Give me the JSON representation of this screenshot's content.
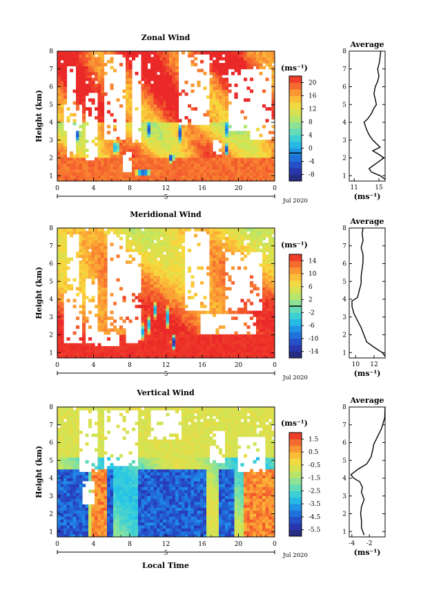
{
  "chart_data": [
    {
      "type": "heatmap",
      "title": "Zonal Wind",
      "ylabel": "Height (km)",
      "x_ticks": [
        "0",
        "4",
        "8",
        "12",
        "16",
        "20",
        "0"
      ],
      "y_ticks": [
        "1",
        "2",
        "3",
        "4",
        "5",
        "6",
        "7",
        "8"
      ],
      "xlim": [
        0,
        24
      ],
      "ylim": [
        0.7,
        8
      ],
      "date_day": "5",
      "date_label": "Jul 2020",
      "unit": "(ms⁻¹)",
      "colorbar": {
        "min": -8,
        "max": 22,
        "ticks": [
          "20",
          "16",
          "12",
          "8",
          "4",
          "0",
          "-4",
          "-8"
        ],
        "marker": 0
      },
      "average": {
        "title": "Average",
        "xlabel": "(ms⁻¹)",
        "x_ticks": [
          "11",
          "15"
        ],
        "xlim": [
          10.2,
          16
        ],
        "profile": [
          [
            0.8,
            16
          ],
          [
            1.0,
            15.2
          ],
          [
            1.2,
            13.8
          ],
          [
            1.4,
            13.4
          ],
          [
            1.6,
            14.2
          ],
          [
            1.8,
            15.0
          ],
          [
            2.0,
            15.8
          ],
          [
            2.2,
            15.0
          ],
          [
            2.4,
            14.0
          ],
          [
            2.6,
            15.2
          ],
          [
            2.8,
            14.6
          ],
          [
            3.0,
            14.0
          ],
          [
            3.3,
            13.4
          ],
          [
            3.6,
            13.0
          ],
          [
            3.8,
            12.8
          ],
          [
            4.0,
            12.6
          ],
          [
            4.2,
            13.2
          ],
          [
            4.5,
            13.8
          ],
          [
            4.8,
            14.2
          ],
          [
            5.0,
            14.6
          ],
          [
            5.3,
            14.4
          ],
          [
            5.6,
            14.2
          ],
          [
            6.0,
            14.4
          ],
          [
            6.3,
            14.8
          ],
          [
            6.6,
            15.0
          ],
          [
            7.0,
            14.8
          ],
          [
            7.4,
            15.1
          ],
          [
            8.0,
            15.3
          ]
        ]
      },
      "field": {
        "gaps": [
          [
            [
              0.6,
              2.6
            ],
            [
              3.6,
              5.0
            ]
          ],
          [
            [
              6.5,
              6.8
            ],
            [
              4.0,
              5.4
            ]
          ],
          [
            [
              1.0,
              2.0
            ],
            [
              2.0,
              7.2
            ]
          ],
          [
            [
              3.2,
              4.4
            ],
            [
              1.8,
              5.6
            ]
          ],
          [
            [
              5.2,
              7.6
            ],
            [
              3.0,
              7.8
            ]
          ],
          [
            [
              8.2,
              9.4
            ],
            [
              2.8,
              7.6
            ]
          ],
          [
            [
              13.5,
              16.8
            ],
            [
              3.8,
              7.8
            ]
          ],
          [
            [
              19.0,
              23.6
            ],
            [
              3.5,
              7.0
            ]
          ],
          [
            [
              21.2,
              24
            ],
            [
              3.0,
              4.2
            ]
          ],
          [
            [
              17.0,
              18.0
            ],
            [
              2.2,
              3.0
            ]
          ],
          [
            [
              7.2,
              8.2
            ],
            [
              1.2,
              2.4
            ]
          ]
        ],
        "blobs": [
          [
            1.5,
            3.6,
            -6,
            0.25,
            0.4
          ],
          [
            2.3,
            3.3,
            -5,
            0.2,
            0.4
          ],
          [
            6.5,
            2.6,
            -4,
            0.3,
            0.5
          ],
          [
            9.5,
            1.2,
            -7,
            1.0,
            0.18
          ],
          [
            10.2,
            3.6,
            -6,
            0.2,
            0.5
          ],
          [
            12.6,
            2.0,
            -6,
            0.35,
            0.3
          ],
          [
            13.5,
            3.4,
            -4,
            0.2,
            0.6
          ],
          [
            18.6,
            2.5,
            -6,
            0.25,
            0.4
          ],
          [
            18.8,
            3.6,
            -5,
            0.2,
            0.6
          ]
        ]
      }
    },
    {
      "type": "heatmap",
      "title": "Meridional Wind",
      "ylabel": "Height (km)",
      "x_ticks": [
        "0",
        "4",
        "8",
        "12",
        "16",
        "20",
        "0"
      ],
      "y_ticks": [
        "1",
        "2",
        "3",
        "4",
        "5",
        "6",
        "7",
        "8"
      ],
      "xlim": [
        0,
        24
      ],
      "ylim": [
        0.7,
        8
      ],
      "date_day": "5",
      "date_label": "Jul 2020",
      "unit": "(ms⁻¹)",
      "colorbar": {
        "min": -16,
        "max": 16,
        "ticks": [
          "14",
          "10",
          "6",
          "2",
          "-2",
          "-6",
          "-10",
          "-14"
        ],
        "marker": 0
      },
      "average": {
        "title": "Average",
        "xlabel": "(ms⁻¹)",
        "x_ticks": [
          "10",
          "12"
        ],
        "xlim": [
          9.3,
          13.2
        ],
        "profile": [
          [
            0.8,
            13.2
          ],
          [
            1.0,
            12.9
          ],
          [
            1.3,
            12.0
          ],
          [
            1.6,
            11.2
          ],
          [
            2.0,
            10.9
          ],
          [
            2.4,
            10.6
          ],
          [
            2.8,
            10.2
          ],
          [
            3.2,
            9.8
          ],
          [
            3.6,
            9.6
          ],
          [
            3.9,
            9.6
          ],
          [
            4.1,
            10.2
          ],
          [
            4.5,
            10.4
          ],
          [
            4.9,
            10.6
          ],
          [
            5.3,
            10.6
          ],
          [
            5.7,
            10.7
          ],
          [
            6.1,
            10.8
          ],
          [
            6.5,
            10.8
          ],
          [
            6.9,
            10.6
          ],
          [
            7.3,
            10.8
          ],
          [
            7.7,
            10.7
          ],
          [
            8.0,
            10.8
          ]
        ]
      },
      "field": {
        "gaps": [
          [
            [
              0.6,
              2.8
            ],
            [
              1.5,
              4.3
            ]
          ],
          [
            [
              1.0,
              2.4
            ],
            [
              4.3,
              7.6
            ]
          ],
          [
            [
              3.2,
              4.6
            ],
            [
              1.6,
              5.2
            ]
          ],
          [
            [
              4.2,
              6.8
            ],
            [
              1.4,
              2.2
            ]
          ],
          [
            [
              5.6,
              7.4
            ],
            [
              2.4,
              7.6
            ]
          ],
          [
            [
              7.6,
              9.2
            ],
            [
              1.5,
              6.6
            ]
          ],
          [
            [
              14.2,
              16.8
            ],
            [
              3.4,
              7.8
            ]
          ],
          [
            [
              18.6,
              22.6
            ],
            [
              3.4,
              6.6
            ]
          ],
          [
            [
              15.8,
              22.0
            ],
            [
              2.1,
              3.2
            ]
          ]
        ],
        "blobs": [
          [
            9.5,
            2.2,
            -8,
            0.25,
            0.5
          ],
          [
            10.2,
            2.6,
            -10,
            0.2,
            0.6
          ],
          [
            10.8,
            3.4,
            -6,
            0.25,
            0.5
          ],
          [
            12.8,
            1.6,
            -14,
            0.3,
            0.5
          ],
          [
            12.2,
            3.0,
            -6,
            0.25,
            0.7
          ]
        ]
      }
    },
    {
      "type": "heatmap",
      "title": "Vertical Wind",
      "ylabel": "Height (km)",
      "xlabel": "Local Time",
      "x_ticks": [
        "0",
        "4",
        "8",
        "12",
        "16",
        "20",
        "0"
      ],
      "y_ticks": [
        "1",
        "2",
        "3",
        "4",
        "5",
        "6",
        "7",
        "8"
      ],
      "xlim": [
        0,
        24
      ],
      "ylim": [
        0.7,
        8
      ],
      "date_day": "5",
      "date_label": "Jul 2020",
      "unit": "(ms⁻¹)",
      "colorbar": {
        "min": -6,
        "max": 2,
        "ticks": [
          "1.5",
          "0.5",
          "-0.5",
          "-1.5",
          "-2.5",
          "-3.5",
          "-4.5",
          "-5.5"
        ]
      },
      "average": {
        "title": "Average",
        "xlabel": "(ms⁻¹)",
        "x_ticks": [
          "-4",
          "-2"
        ],
        "xlim": [
          -4.3,
          -0.2
        ],
        "profile": [
          [
            0.8,
            -2.6
          ],
          [
            1.2,
            -2.9
          ],
          [
            1.6,
            -2.9
          ],
          [
            2.0,
            -3.0
          ],
          [
            2.4,
            -2.9
          ],
          [
            2.8,
            -2.6
          ],
          [
            3.2,
            -2.9
          ],
          [
            3.5,
            -2.8
          ],
          [
            3.8,
            -3.1
          ],
          [
            4.0,
            -3.8
          ],
          [
            4.2,
            -4.1
          ],
          [
            4.5,
            -3.3
          ],
          [
            4.8,
            -2.3
          ],
          [
            5.2,
            -1.8
          ],
          [
            5.6,
            -1.6
          ],
          [
            5.9,
            -1.5
          ],
          [
            6.3,
            -1.1
          ],
          [
            6.8,
            -0.6
          ],
          [
            7.4,
            -0.25
          ],
          [
            8.0,
            -0.2
          ]
        ]
      },
      "field": {
        "gaps": [
          [
            [
              2.4,
              4.6
            ],
            [
              4.3,
              7.8
            ]
          ],
          [
            [
              5.0,
              5.8
            ],
            [
              4.5,
              7.8
            ]
          ],
          [
            [
              6.0,
              8.8
            ],
            [
              4.6,
              7.8
            ]
          ],
          [
            [
              10.2,
              13.8
            ],
            [
              6.2,
              7.8
            ]
          ],
          [
            [
              20.0,
              23.0
            ],
            [
              4.4,
              6.4
            ]
          ],
          [
            [
              16.8,
              18.4
            ],
            [
              4.8,
              6.6
            ]
          ],
          [
            [
              2.6,
              4.2
            ],
            [
              2.6,
              3.8
            ]
          ]
        ],
        "blobs": []
      }
    }
  ]
}
